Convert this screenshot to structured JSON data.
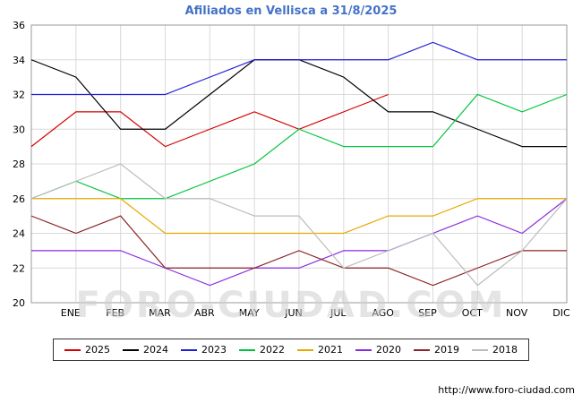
{
  "watermark": "FORO-CIUDAD.COM",
  "source_url": "http://www.foro-ciudad.com",
  "chart_data": {
    "type": "line",
    "title": "Afiliados en Vellisca a 31/8/2025",
    "xlabel": "",
    "ylabel": "",
    "ylim": [
      20,
      36
    ],
    "y_ticks": [
      20,
      22,
      24,
      26,
      28,
      30,
      32,
      34,
      36
    ],
    "x_tick_labels": [
      "ENE",
      "FEB",
      "MAR",
      "ABR",
      "MAY",
      "JUN",
      "JUL",
      "AGO",
      "SEP",
      "OCT",
      "NOV",
      "DIC"
    ],
    "grid": true,
    "legend_position": "bottom",
    "series": [
      {
        "name": "2025",
        "color": "#d40000",
        "values": [
          29,
          31,
          31,
          29,
          30,
          31,
          30,
          31,
          32
        ]
      },
      {
        "name": "2024",
        "color": "#000000",
        "values": [
          34,
          33,
          30,
          30,
          32,
          34,
          34,
          33,
          31,
          31,
          30,
          29,
          29
        ]
      },
      {
        "name": "2023",
        "color": "#1f1fd4",
        "values": [
          32,
          32,
          32,
          32,
          33,
          34,
          34,
          34,
          34,
          35,
          34,
          34,
          34
        ]
      },
      {
        "name": "2022",
        "color": "#00c43c",
        "values": [
          26,
          27,
          26,
          26,
          27,
          28,
          30,
          29,
          29,
          29,
          32,
          31,
          32
        ]
      },
      {
        "name": "2021",
        "color": "#e8a800",
        "values": [
          26,
          26,
          26,
          24,
          24,
          24,
          24,
          24,
          25,
          25,
          26,
          26,
          26
        ]
      },
      {
        "name": "2020",
        "color": "#8a2be2",
        "values": [
          23,
          23,
          23,
          22,
          21,
          22,
          22,
          23,
          23,
          24,
          25,
          24,
          26
        ]
      },
      {
        "name": "2019",
        "color": "#8b2323",
        "values": [
          25,
          24,
          25,
          22,
          22,
          22,
          23,
          22,
          22,
          21,
          22,
          23,
          23
        ]
      },
      {
        "name": "2018",
        "color": "#bbbbbb",
        "values": [
          26,
          27,
          28,
          26,
          26,
          25,
          25,
          22,
          23,
          24,
          21,
          23,
          26
        ]
      }
    ]
  }
}
